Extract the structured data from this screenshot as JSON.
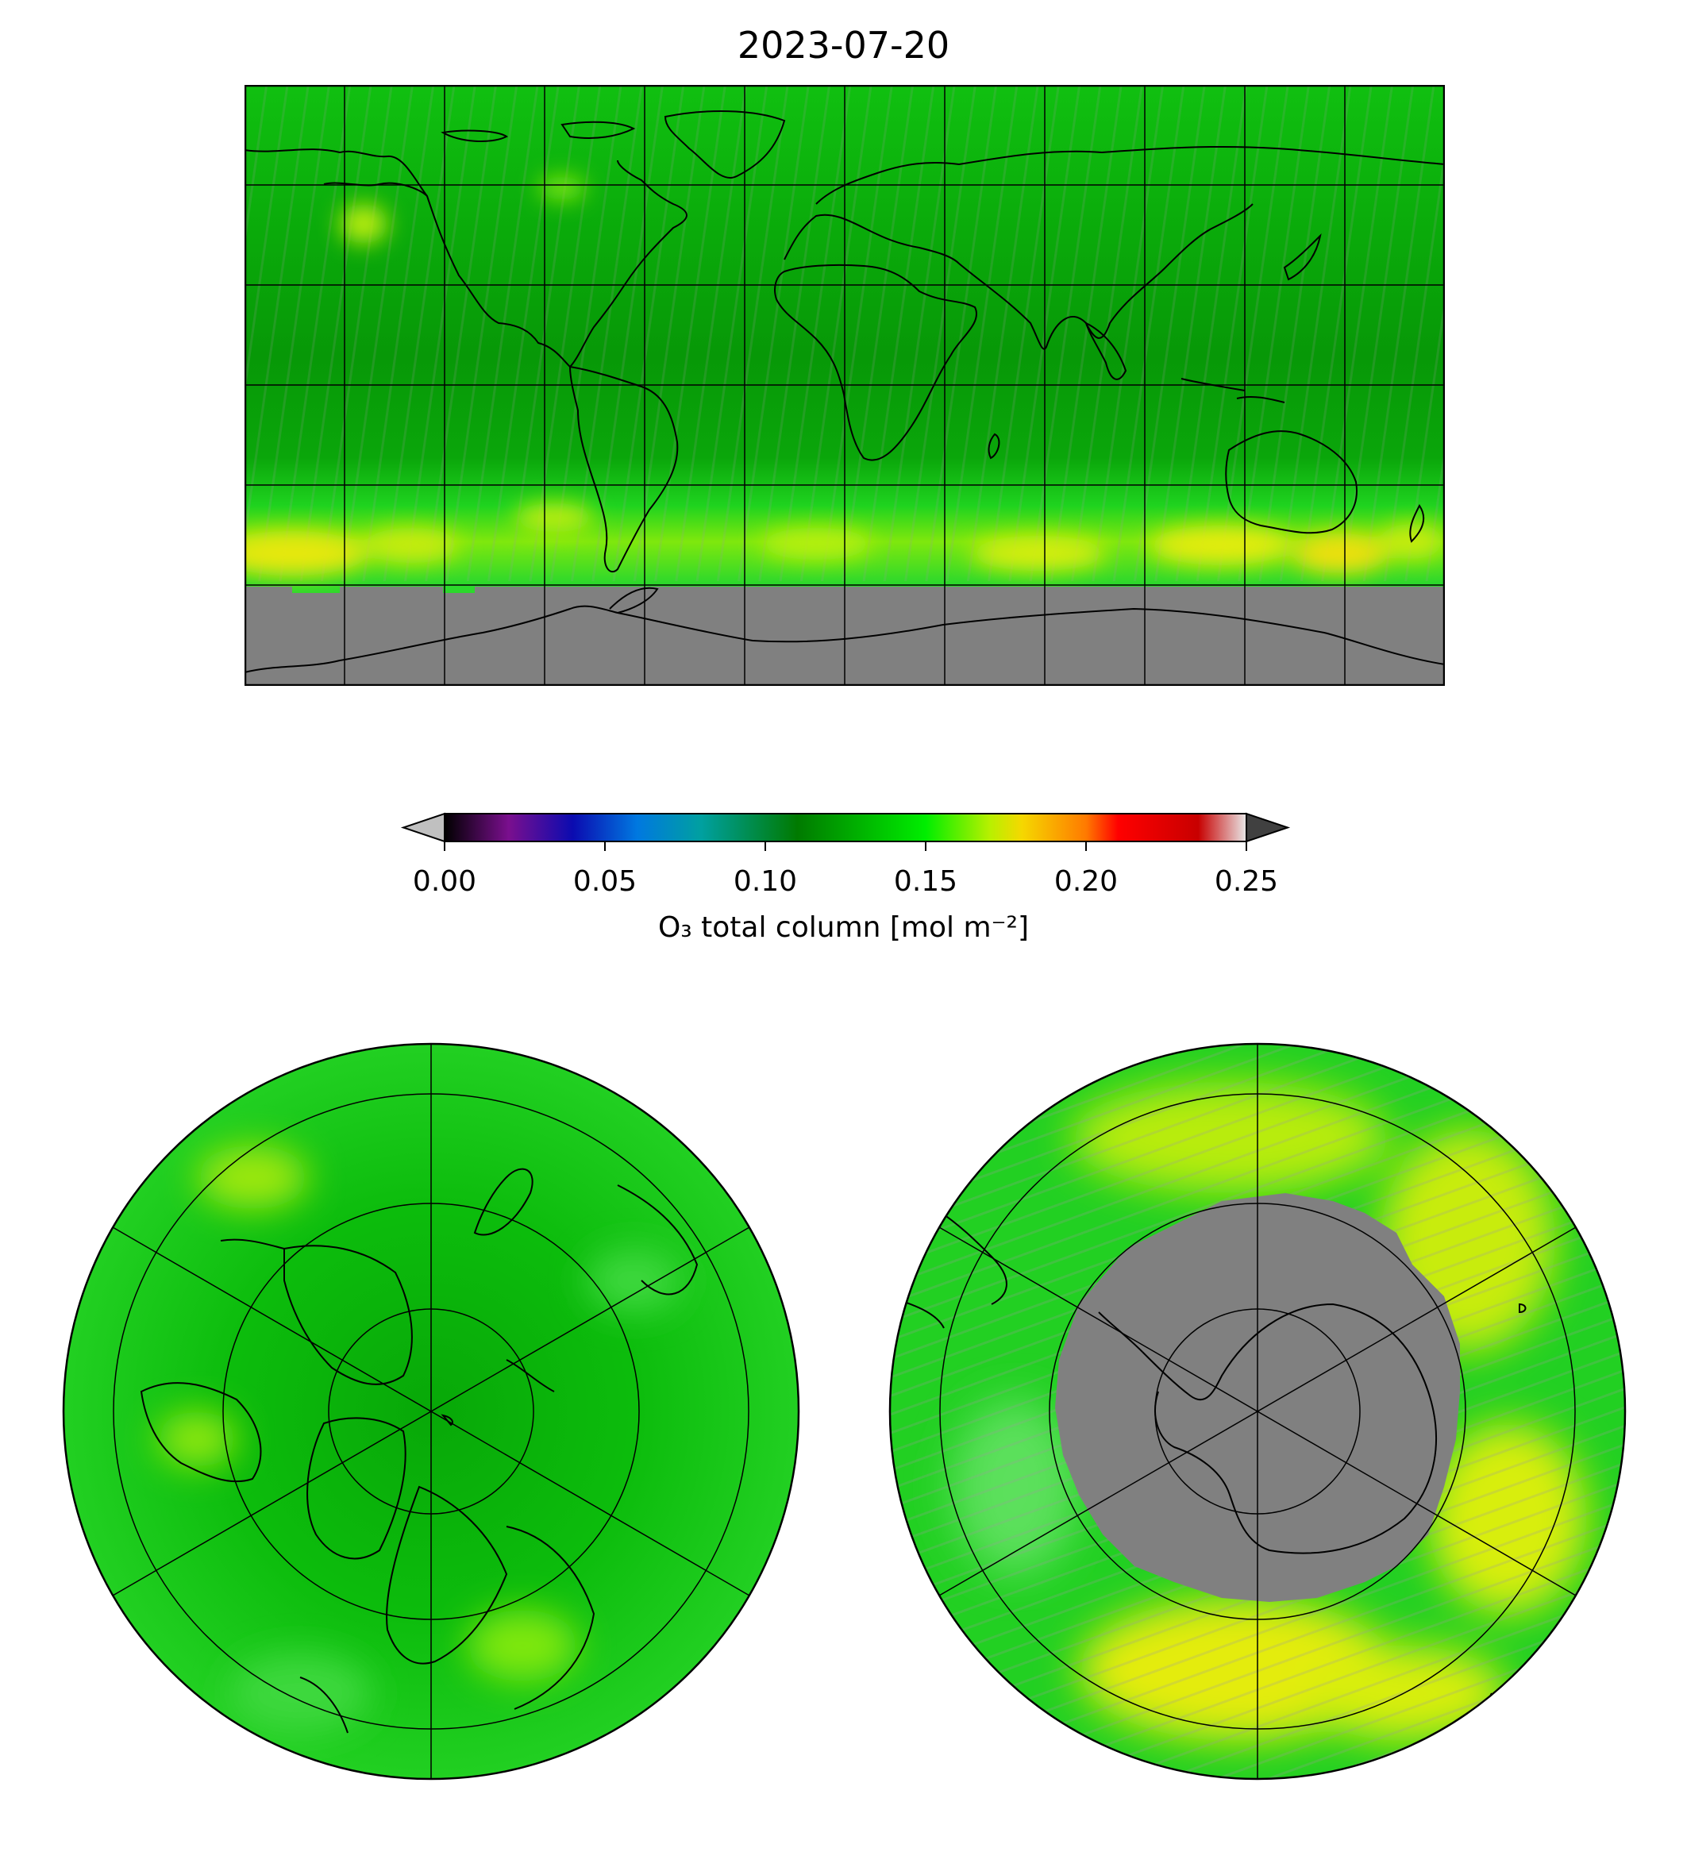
{
  "title": "2023-07-20",
  "colorbar": {
    "label": "O₃ total column [mol m⁻²]",
    "min": 0.0,
    "max": 0.25,
    "ticks": [
      "0.00",
      "0.05",
      "0.10",
      "0.15",
      "0.20",
      "0.25"
    ],
    "extend": "both",
    "under_color": "#c0c0c0",
    "over_color": "#404040",
    "stops": [
      {
        "v": 0.0,
        "c": "#000000"
      },
      {
        "v": 0.02,
        "c": "#7a0f8e"
      },
      {
        "v": 0.04,
        "c": "#0b0bb0"
      },
      {
        "v": 0.06,
        "c": "#0078e0"
      },
      {
        "v": 0.08,
        "c": "#00a0a0"
      },
      {
        "v": 0.11,
        "c": "#007a00"
      },
      {
        "v": 0.15,
        "c": "#00ee00"
      },
      {
        "v": 0.17,
        "c": "#b8f000"
      },
      {
        "v": 0.18,
        "c": "#f5d800"
      },
      {
        "v": 0.2,
        "c": "#ff7a00"
      },
      {
        "v": 0.21,
        "c": "#ff0000"
      },
      {
        "v": 0.235,
        "c": "#c80000"
      },
      {
        "v": 0.25,
        "c": "#e8e8e8"
      }
    ]
  },
  "maps": [
    {
      "name": "world",
      "projection": "plate-carree",
      "gridlines": "every 30°",
      "no_data_color": "#808080"
    },
    {
      "name": "north-polar",
      "projection": "north-polar-stereographic",
      "no_data_color": "#808080"
    },
    {
      "name": "south-polar",
      "projection": "south-polar-stereographic",
      "no_data_color": "#808080"
    }
  ],
  "colors": {
    "ozone_low_green": "#00a800",
    "ozone_mid_green": "#1fd31f",
    "ozone_high_yellow": "#d8ee10",
    "ozone_peak_orange": "#f0c000",
    "no_data_gray": "#808080",
    "coastline": "#000000"
  }
}
